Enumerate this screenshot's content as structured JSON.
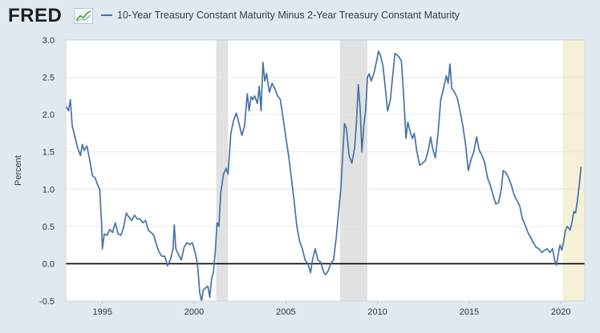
{
  "brand": {
    "logo_text": "FRED",
    "logo_icon": "line-graph-icon"
  },
  "colors": {
    "series": "#4572a7",
    "recession": "#e1e1e1",
    "recent_shade": "#f5f1d7",
    "zero_line": "#000000",
    "grid": "#e6e6e6",
    "background": "#e1e9f0"
  },
  "chart_data": {
    "type": "line",
    "title": "",
    "xlabel": "",
    "ylabel": "Percent",
    "xlim": [
      1993.0,
      2021.3
    ],
    "ylim": [
      -0.5,
      3.0
    ],
    "x_ticks": [
      1995,
      2000,
      2005,
      2010,
      2015,
      2020
    ],
    "y_ticks": [
      "3.0",
      "2.5",
      "2.0",
      "1.5",
      "1.0",
      "0.5",
      "0.0",
      "-0.5"
    ],
    "grid": true,
    "legend": "top-left",
    "shaded_periods": [
      {
        "type": "recession",
        "start": 2001.2,
        "end": 2001.85
      },
      {
        "type": "recession",
        "start": 2007.95,
        "end": 2009.45
      },
      {
        "type": "recent",
        "start": 2020.1,
        "end": 2021.3
      }
    ],
    "series": [
      {
        "name": "10-Year Treasury Constant Maturity Minus 2-Year Treasury Constant Maturity",
        "points": [
          [
            1993.0,
            2.12
          ],
          [
            1993.15,
            2.05
          ],
          [
            1993.25,
            2.2
          ],
          [
            1993.35,
            1.85
          ],
          [
            1993.5,
            1.7
          ],
          [
            1993.65,
            1.55
          ],
          [
            1993.8,
            1.45
          ],
          [
            1993.9,
            1.6
          ],
          [
            1994.0,
            1.52
          ],
          [
            1994.15,
            1.58
          ],
          [
            1994.3,
            1.4
          ],
          [
            1994.45,
            1.18
          ],
          [
            1994.6,
            1.15
          ],
          [
            1994.75,
            1.05
          ],
          [
            1994.85,
            1.0
          ],
          [
            1994.95,
            0.55
          ],
          [
            1995.0,
            0.2
          ],
          [
            1995.1,
            0.4
          ],
          [
            1995.25,
            0.38
          ],
          [
            1995.4,
            0.46
          ],
          [
            1995.55,
            0.42
          ],
          [
            1995.7,
            0.55
          ],
          [
            1995.85,
            0.4
          ],
          [
            1996.0,
            0.38
          ],
          [
            1996.15,
            0.48
          ],
          [
            1996.3,
            0.68
          ],
          [
            1996.45,
            0.62
          ],
          [
            1996.6,
            0.58
          ],
          [
            1996.75,
            0.65
          ],
          [
            1996.9,
            0.6
          ],
          [
            1997.05,
            0.6
          ],
          [
            1997.2,
            0.55
          ],
          [
            1997.35,
            0.58
          ],
          [
            1997.5,
            0.45
          ],
          [
            1997.65,
            0.42
          ],
          [
            1997.8,
            0.38
          ],
          [
            1997.95,
            0.25
          ],
          [
            1998.1,
            0.15
          ],
          [
            1998.25,
            0.1
          ],
          [
            1998.4,
            0.1
          ],
          [
            1998.55,
            -0.03
          ],
          [
            1998.7,
            0.05
          ],
          [
            1998.85,
            0.2
          ],
          [
            1998.92,
            0.52
          ],
          [
            1999.0,
            0.2
          ],
          [
            1999.15,
            0.12
          ],
          [
            1999.3,
            0.05
          ],
          [
            1999.45,
            0.22
          ],
          [
            1999.6,
            0.28
          ],
          [
            1999.75,
            0.26
          ],
          [
            1999.9,
            0.28
          ],
          [
            2000.0,
            0.2
          ],
          [
            2000.1,
            0.1
          ],
          [
            2000.2,
            -0.05
          ],
          [
            2000.3,
            -0.38
          ],
          [
            2000.4,
            -0.5
          ],
          [
            2000.5,
            -0.35
          ],
          [
            2000.6,
            -0.33
          ],
          [
            2000.75,
            -0.3
          ],
          [
            2000.85,
            -0.45
          ],
          [
            2000.95,
            -0.2
          ],
          [
            2001.05,
            -0.12
          ],
          [
            2001.15,
            0.15
          ],
          [
            2001.25,
            0.55
          ],
          [
            2001.35,
            0.5
          ],
          [
            2001.45,
            0.95
          ],
          [
            2001.6,
            1.2
          ],
          [
            2001.75,
            1.28
          ],
          [
            2001.85,
            1.2
          ],
          [
            2002.0,
            1.75
          ],
          [
            2002.15,
            1.92
          ],
          [
            2002.3,
            2.02
          ],
          [
            2002.45,
            1.88
          ],
          [
            2002.6,
            1.72
          ],
          [
            2002.75,
            1.85
          ],
          [
            2002.9,
            2.28
          ],
          [
            2003.0,
            2.05
          ],
          [
            2003.1,
            2.24
          ],
          [
            2003.2,
            2.2
          ],
          [
            2003.3,
            2.25
          ],
          [
            2003.45,
            2.15
          ],
          [
            2003.55,
            2.38
          ],
          [
            2003.65,
            2.05
          ],
          [
            2003.75,
            2.7
          ],
          [
            2003.85,
            2.45
          ],
          [
            2003.95,
            2.55
          ],
          [
            2004.1,
            2.3
          ],
          [
            2004.25,
            2.42
          ],
          [
            2004.4,
            2.35
          ],
          [
            2004.55,
            2.25
          ],
          [
            2004.7,
            2.2
          ],
          [
            2004.85,
            1.95
          ],
          [
            2005.0,
            1.7
          ],
          [
            2005.15,
            1.45
          ],
          [
            2005.3,
            1.15
          ],
          [
            2005.45,
            0.85
          ],
          [
            2005.6,
            0.5
          ],
          [
            2005.75,
            0.3
          ],
          [
            2005.9,
            0.2
          ],
          [
            2006.05,
            0.05
          ],
          [
            2006.2,
            0.0
          ],
          [
            2006.35,
            -0.12
          ],
          [
            2006.45,
            0.05
          ],
          [
            2006.6,
            0.2
          ],
          [
            2006.75,
            0.05
          ],
          [
            2006.9,
            0.02
          ],
          [
            2007.05,
            -0.1
          ],
          [
            2007.15,
            -0.15
          ],
          [
            2007.3,
            -0.1
          ],
          [
            2007.45,
            0.0
          ],
          [
            2007.6,
            0.05
          ],
          [
            2007.75,
            0.35
          ],
          [
            2007.9,
            0.75
          ],
          [
            2008.0,
            1.0
          ],
          [
            2008.1,
            1.45
          ],
          [
            2008.2,
            1.88
          ],
          [
            2008.3,
            1.82
          ],
          [
            2008.45,
            1.45
          ],
          [
            2008.6,
            1.35
          ],
          [
            2008.75,
            1.55
          ],
          [
            2008.85,
            1.9
          ],
          [
            2008.95,
            2.4
          ],
          [
            2009.05,
            2.1
          ],
          [
            2009.15,
            1.5
          ],
          [
            2009.25,
            1.85
          ],
          [
            2009.35,
            2.05
          ],
          [
            2009.45,
            2.5
          ],
          [
            2009.55,
            2.55
          ],
          [
            2009.65,
            2.45
          ],
          [
            2009.8,
            2.55
          ],
          [
            2009.95,
            2.72
          ],
          [
            2010.05,
            2.85
          ],
          [
            2010.15,
            2.8
          ],
          [
            2010.3,
            2.65
          ],
          [
            2010.45,
            2.3
          ],
          [
            2010.55,
            2.05
          ],
          [
            2010.7,
            2.2
          ],
          [
            2010.8,
            2.45
          ],
          [
            2010.95,
            2.82
          ],
          [
            2011.05,
            2.8
          ],
          [
            2011.15,
            2.78
          ],
          [
            2011.3,
            2.72
          ],
          [
            2011.45,
            2.15
          ],
          [
            2011.55,
            1.68
          ],
          [
            2011.65,
            1.9
          ],
          [
            2011.8,
            1.75
          ],
          [
            2011.9,
            1.68
          ],
          [
            2012.0,
            1.75
          ],
          [
            2012.15,
            1.5
          ],
          [
            2012.3,
            1.32
          ],
          [
            2012.45,
            1.35
          ],
          [
            2012.6,
            1.38
          ],
          [
            2012.75,
            1.5
          ],
          [
            2012.9,
            1.7
          ],
          [
            2013.0,
            1.55
          ],
          [
            2013.15,
            1.42
          ],
          [
            2013.3,
            1.75
          ],
          [
            2013.45,
            2.2
          ],
          [
            2013.6,
            2.35
          ],
          [
            2013.75,
            2.52
          ],
          [
            2013.85,
            2.42
          ],
          [
            2013.95,
            2.68
          ],
          [
            2014.05,
            2.35
          ],
          [
            2014.2,
            2.3
          ],
          [
            2014.35,
            2.22
          ],
          [
            2014.5,
            2.05
          ],
          [
            2014.65,
            1.85
          ],
          [
            2014.8,
            1.6
          ],
          [
            2014.95,
            1.25
          ],
          [
            2015.1,
            1.4
          ],
          [
            2015.25,
            1.5
          ],
          [
            2015.4,
            1.7
          ],
          [
            2015.55,
            1.52
          ],
          [
            2015.7,
            1.45
          ],
          [
            2015.85,
            1.35
          ],
          [
            2016.0,
            1.15
          ],
          [
            2016.15,
            1.05
          ],
          [
            2016.3,
            0.92
          ],
          [
            2016.45,
            0.8
          ],
          [
            2016.6,
            0.82
          ],
          [
            2016.75,
            1.0
          ],
          [
            2016.85,
            1.25
          ],
          [
            2017.0,
            1.22
          ],
          [
            2017.15,
            1.15
          ],
          [
            2017.3,
            1.05
          ],
          [
            2017.45,
            0.92
          ],
          [
            2017.6,
            0.85
          ],
          [
            2017.75,
            0.78
          ],
          [
            2017.9,
            0.6
          ],
          [
            2018.05,
            0.52
          ],
          [
            2018.2,
            0.42
          ],
          [
            2018.35,
            0.35
          ],
          [
            2018.5,
            0.28
          ],
          [
            2018.65,
            0.22
          ],
          [
            2018.8,
            0.2
          ],
          [
            2018.95,
            0.15
          ],
          [
            2019.1,
            0.18
          ],
          [
            2019.25,
            0.2
          ],
          [
            2019.4,
            0.15
          ],
          [
            2019.55,
            0.2
          ],
          [
            2019.65,
            0.05
          ],
          [
            2019.75,
            -0.02
          ],
          [
            2019.85,
            0.12
          ],
          [
            2019.95,
            0.25
          ],
          [
            2020.05,
            0.18
          ],
          [
            2020.15,
            0.3
          ],
          [
            2020.25,
            0.45
          ],
          [
            2020.35,
            0.5
          ],
          [
            2020.5,
            0.45
          ],
          [
            2020.6,
            0.55
          ],
          [
            2020.7,
            0.7
          ],
          [
            2020.8,
            0.68
          ],
          [
            2020.9,
            0.85
          ],
          [
            2021.0,
            1.05
          ],
          [
            2021.1,
            1.3
          ]
        ]
      }
    ]
  }
}
